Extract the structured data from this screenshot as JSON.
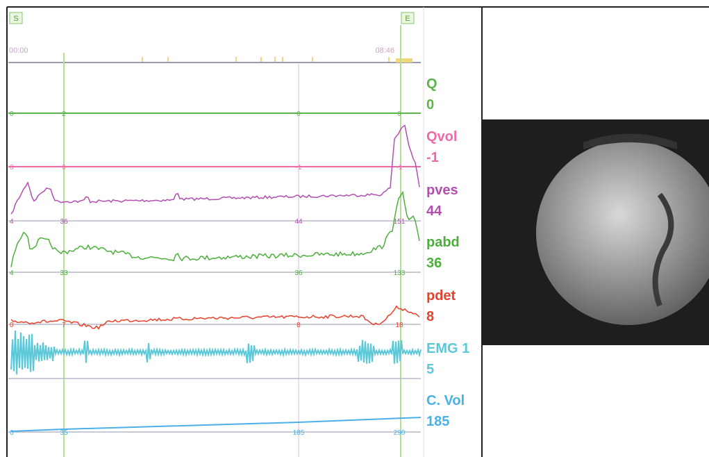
{
  "markers": {
    "start": "S",
    "end": "E"
  },
  "timeline": {
    "start": "00:00",
    "end": "08:46"
  },
  "channels": [
    {
      "name": "Q",
      "value": 0,
      "cursor_values": [
        0,
        2,
        0,
        0
      ]
    },
    {
      "name": "Qvol",
      "value": -1,
      "cursor_values": [
        0,
        0,
        -1,
        -1
      ]
    },
    {
      "name": "pves",
      "value": 44,
      "cursor_values": [
        4,
        36,
        44,
        151
      ]
    },
    {
      "name": "pabd",
      "value": 36,
      "cursor_values": [
        4,
        33,
        36,
        133
      ]
    },
    {
      "name": "pdet",
      "value": 8,
      "cursor_values": [
        0,
        7,
        8,
        18
      ]
    },
    {
      "name": "EMG 1",
      "value": 5,
      "cursor_values": []
    },
    {
      "name": "C. Vol",
      "value": 185,
      "cursor_values": [
        0,
        35,
        185,
        290
      ]
    }
  ]
}
